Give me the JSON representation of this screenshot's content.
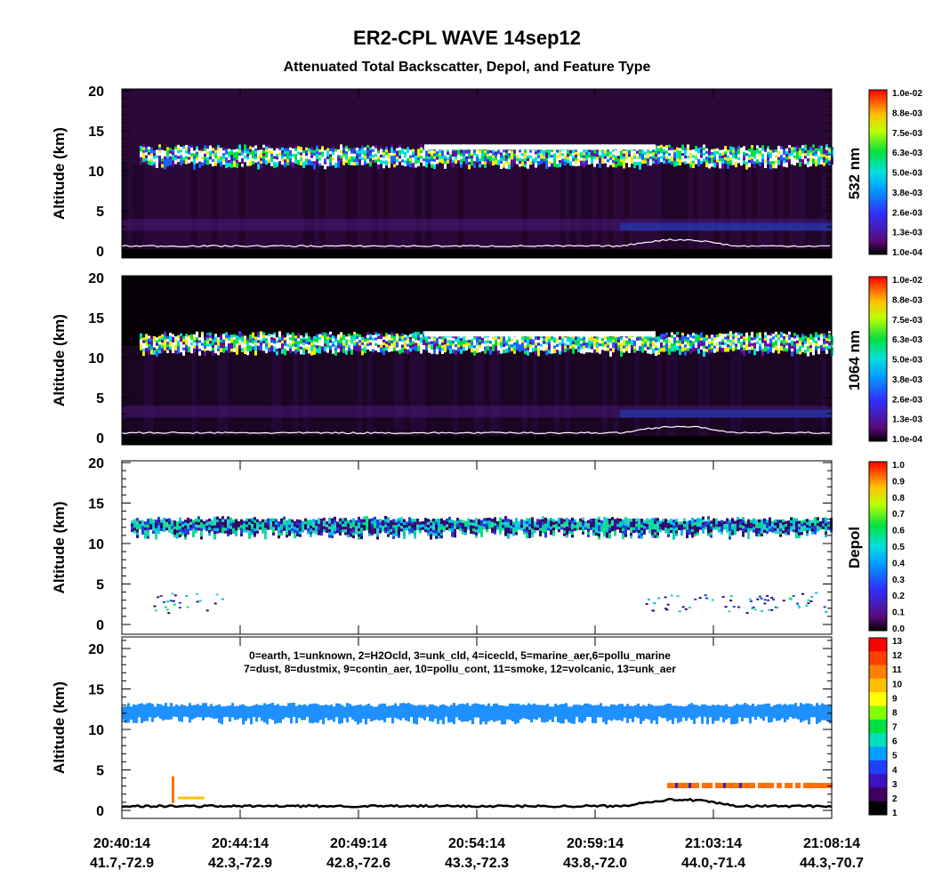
{
  "title": "ER2-CPL WAVE 14sep12",
  "subtitle": "Attenuated Total Backscatter, Depol, and Feature Type",
  "panels": [
    {
      "ylabel": "Altitude (km)",
      "yticks": [
        "0",
        "5",
        "10",
        "15",
        "20"
      ],
      "colorbar_label": "532 nm",
      "colorbar_ticks": [
        "1.0e-02",
        "8.8e-03",
        "7.5e-03",
        "6.3e-03",
        "5.0e-03",
        "3.8e-03",
        "2.6e-03",
        "1.3e-03",
        "1.0e-04"
      ]
    },
    {
      "ylabel": "Altitude (km)",
      "yticks": [
        "0",
        "5",
        "10",
        "15",
        "20"
      ],
      "colorbar_label": "1064 nm",
      "colorbar_ticks": [
        "1.0e-02",
        "8.8e-03",
        "7.5e-03",
        "6.3e-03",
        "5.0e-03",
        "3.8e-03",
        "2.6e-03",
        "1.3e-03",
        "1.0e-04"
      ]
    },
    {
      "ylabel": "Altitude (km)",
      "yticks": [
        "0",
        "5",
        "10",
        "15",
        "20"
      ],
      "colorbar_label": "Depol",
      "colorbar_ticks": [
        "1.0",
        "0.9",
        "0.8",
        "0.7",
        "0.6",
        "0.5",
        "0.4",
        "0.3",
        "0.2",
        "0.1",
        "0.0"
      ]
    },
    {
      "ylabel": "Altitude (km)",
      "yticks": [
        "0",
        "5",
        "10",
        "15",
        "20"
      ],
      "colorbar_ticks": [
        "13",
        "12",
        "11",
        "10",
        "9",
        "8",
        "7",
        "6",
        "5",
        "4",
        "3",
        "2",
        "1"
      ]
    }
  ],
  "feature_legend": [
    "0=earth, 1=unknown, 2=H2Ocld, 3=unk_cld, 4=icecld, 5=marine_aer,6=pollu_marine",
    "7=dust, 8=dustmix, 9=contin_aer, 10=pollu_cont, 11=smoke, 12=volcanic, 13=unk_aer"
  ],
  "x_ticks": [
    {
      "time": "20:40:14",
      "location": "41.7,-72.9"
    },
    {
      "time": "20:44:14",
      "location": "42.3,-72.9"
    },
    {
      "time": "20:49:14",
      "location": "42.8,-72.6"
    },
    {
      "time": "20:54:14",
      "location": "43.3,-72.3"
    },
    {
      "time": "20:59:14",
      "location": "43.8,-72.0"
    },
    {
      "time": "21:03:14",
      "location": "44.0,-71.4"
    },
    {
      "time": "21:08:14",
      "location": "44.3,-70.7"
    }
  ]
}
